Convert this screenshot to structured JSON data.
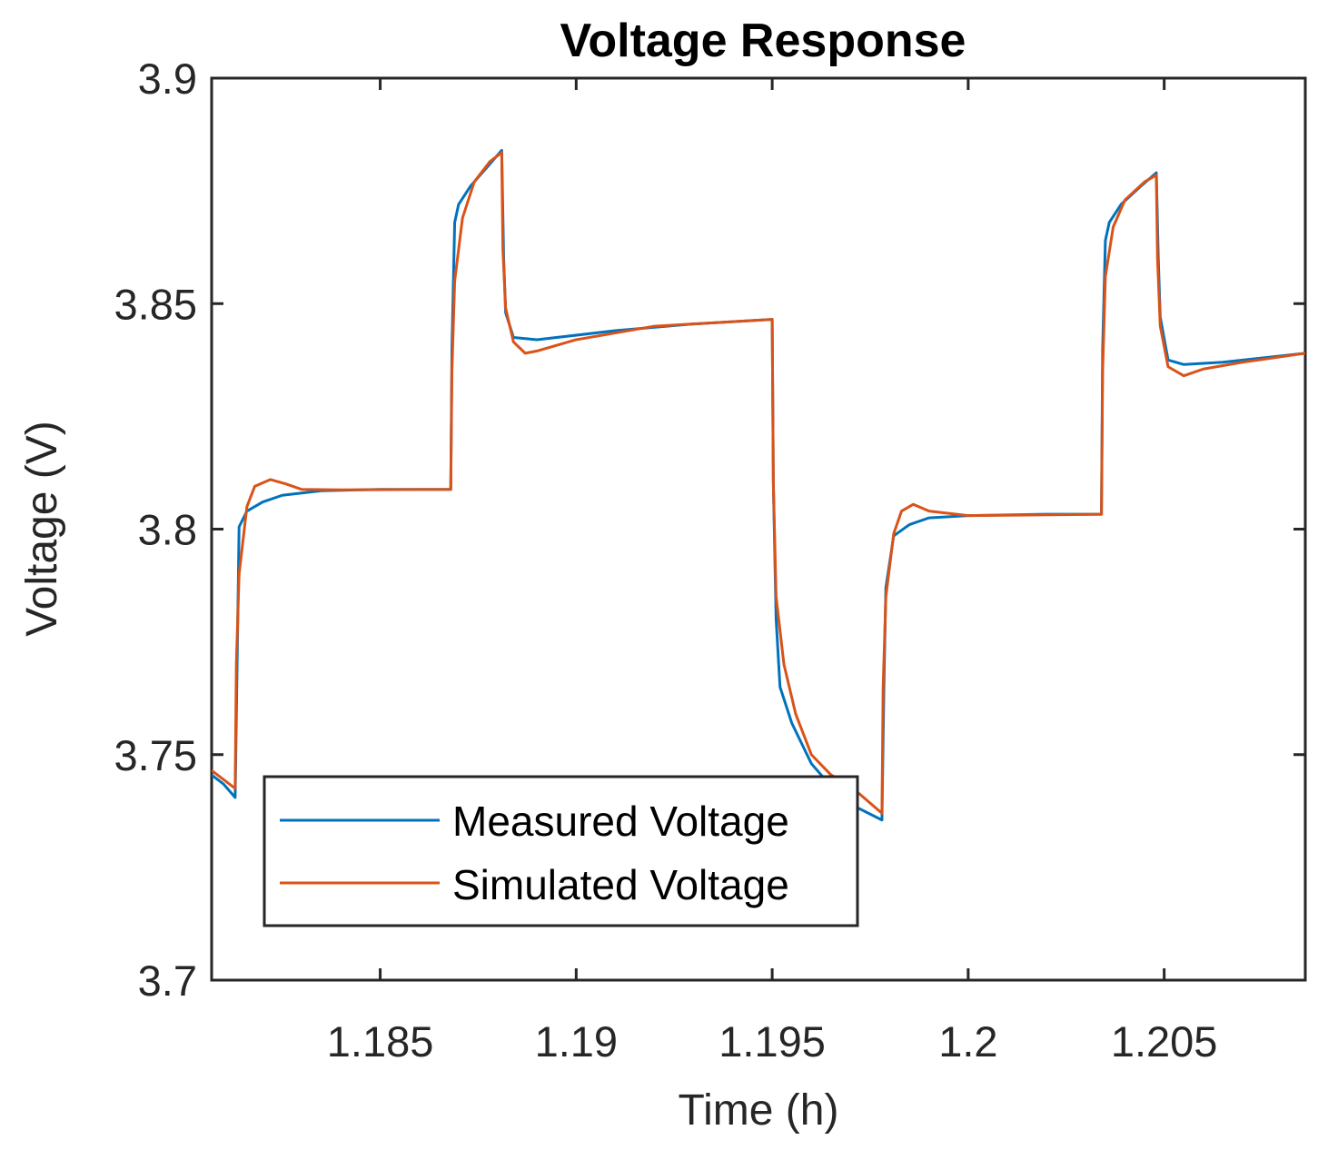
{
  "chart_data": {
    "type": "line",
    "title": "Voltage Response",
    "xlabel": "Time (h)",
    "ylabel": "Voltage (V)",
    "xlim": [
      1.1807,
      1.2086
    ],
    "ylim": [
      3.7,
      3.9
    ],
    "xticks": [
      1.185,
      1.19,
      1.195,
      1.2,
      1.205
    ],
    "xtick_labels": [
      "1.185",
      "1.19",
      "1.195",
      "1.2",
      "1.205"
    ],
    "yticks": [
      3.7,
      3.75,
      3.8,
      3.85,
      3.9
    ],
    "ytick_labels": [
      "3.7",
      "3.75",
      "3.8",
      "3.85",
      "3.9"
    ],
    "grid": false,
    "legend_position": "bottom-left",
    "series": [
      {
        "name": "Measured Voltage",
        "color": "#0072BD",
        "x": [
          1.1807,
          1.181,
          1.1813,
          1.18135,
          1.1814,
          1.1816,
          1.182,
          1.1825,
          1.1835,
          1.185,
          1.1868,
          1.18683,
          1.1869,
          1.187,
          1.1873,
          1.1878,
          1.1881,
          1.18815,
          1.1882,
          1.1884,
          1.189,
          1.191,
          1.193,
          1.195,
          1.19503,
          1.1951,
          1.1952,
          1.1955,
          1.196,
          1.1965,
          1.197,
          1.1978,
          1.19785,
          1.1979,
          1.1981,
          1.1985,
          1.199,
          1.2,
          1.202,
          1.2034,
          1.20343,
          1.2035,
          1.2036,
          1.2039,
          1.2044,
          1.2048,
          1.20485,
          1.2049,
          1.2051,
          1.2055,
          1.2065,
          1.2086
        ],
        "y": [
          3.7455,
          3.7435,
          3.7405,
          3.77,
          3.8005,
          3.804,
          3.806,
          3.8075,
          3.8085,
          3.8088,
          3.8088,
          3.84,
          3.868,
          3.872,
          3.876,
          3.881,
          3.884,
          3.86,
          3.848,
          3.8425,
          3.842,
          3.844,
          3.8455,
          3.8465,
          3.81,
          3.78,
          3.765,
          3.757,
          3.748,
          3.743,
          3.739,
          3.7355,
          3.765,
          3.787,
          3.7985,
          3.801,
          3.8025,
          3.803,
          3.8033,
          3.8033,
          3.84,
          3.864,
          3.868,
          3.872,
          3.876,
          3.879,
          3.86,
          3.847,
          3.8375,
          3.8365,
          3.837,
          3.839
        ]
      },
      {
        "name": "Simulated Voltage",
        "color": "#D95319",
        "x": [
          1.1807,
          1.1813,
          1.18133,
          1.1814,
          1.1816,
          1.1818,
          1.1822,
          1.1826,
          1.183,
          1.184,
          1.1868,
          1.18683,
          1.1869,
          1.1871,
          1.1874,
          1.1878,
          1.1881,
          1.18813,
          1.1882,
          1.1884,
          1.1887,
          1.189,
          1.19,
          1.192,
          1.195,
          1.19503,
          1.1951,
          1.1953,
          1.1956,
          1.196,
          1.1965,
          1.197,
          1.1978,
          1.19783,
          1.1979,
          1.1981,
          1.1983,
          1.1986,
          1.199,
          1.2,
          1.2034,
          1.20343,
          1.2035,
          1.2037,
          1.204,
          1.2045,
          1.2048,
          1.20483,
          1.2049,
          1.2051,
          1.2055,
          1.206,
          1.207,
          1.2086
        ],
        "y": [
          3.7465,
          3.7425,
          3.77,
          3.79,
          3.805,
          3.8095,
          3.811,
          3.81,
          3.8088,
          3.8087,
          3.8088,
          3.835,
          3.855,
          3.869,
          3.877,
          3.8815,
          3.8835,
          3.862,
          3.849,
          3.8415,
          3.839,
          3.8395,
          3.842,
          3.845,
          3.8465,
          3.81,
          3.785,
          3.77,
          3.759,
          3.75,
          3.7455,
          3.743,
          3.737,
          3.765,
          3.785,
          3.799,
          3.804,
          3.8055,
          3.804,
          3.803,
          3.8033,
          3.835,
          3.856,
          3.867,
          3.873,
          3.877,
          3.8785,
          3.86,
          3.845,
          3.836,
          3.834,
          3.8355,
          3.837,
          3.839
        ]
      }
    ]
  }
}
